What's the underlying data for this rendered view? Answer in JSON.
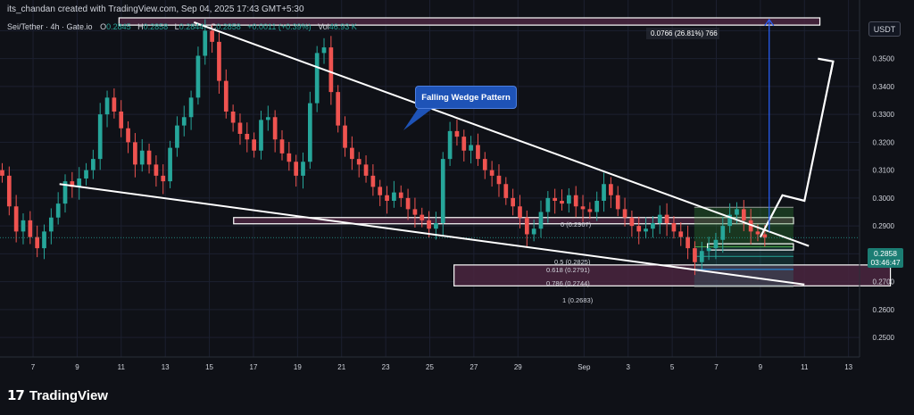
{
  "header": {
    "attribution": "its_chandan created with TradingView.com, Sep 04, 2025 17:43 GMT+5:30",
    "symbol": "Sei/Tether · 4h · Gate.io",
    "open_label": "O",
    "open": "0.2845",
    "high_label": "H",
    "high": "0.2858",
    "low_label": "L",
    "low": "0.2844",
    "close_label": "C",
    "close": "0.2858",
    "change": "+0.0011 (+0.39%)",
    "vol_label": "Vol",
    "vol": "46.93 K"
  },
  "toolbar": {
    "currency_label": "USDT"
  },
  "branding": {
    "logo_mark": "17",
    "name": "TradingView"
  },
  "annotations": {
    "pattern_label": "Falling Wedge Pattern",
    "measure_label": "0.0766 (26.81%) 766",
    "fib_0": "0 (0.2967)",
    "fib_05": "0.5 (0.2825)",
    "fib_0618": "0.618 (0.2791)",
    "fib_0786": "0.786 (0.2744)",
    "fib_1": "1 (0.2683)"
  },
  "price_badge": {
    "price": "0.2858",
    "countdown": "03:46:47"
  },
  "colors": {
    "up": "#26a69a",
    "down": "#ef5350",
    "zone_fill": "#4a2640",
    "zone_border": "#ffffff",
    "measure_line": "#2962ff",
    "trendline": "#ffffff",
    "background": "#0f1117"
  },
  "chart_data": {
    "type": "candlestick",
    "title": "Sei/Tether · 4h · Gate.io",
    "x_ticks": [
      "7",
      "9",
      "11",
      "13",
      "15",
      "17",
      "19",
      "21",
      "23",
      "25",
      "27",
      "29",
      "Sep",
      "3",
      "5",
      "7",
      "9",
      "11",
      "13"
    ],
    "y_ticks": [
      "0.3600",
      "0.3500",
      "0.3400",
      "0.3300",
      "0.3200",
      "0.3100",
      "0.3000",
      "0.2900",
      "0.2800",
      "0.2700",
      "0.2600",
      "0.2500"
    ],
    "ylim": [
      0.243,
      0.371
    ],
    "x_range_days": [
      5.5,
      44.5
    ],
    "grid": true,
    "last_price": 0.2858,
    "closes": [
      0.308,
      0.297,
      0.288,
      0.292,
      0.286,
      0.282,
      0.288,
      0.293,
      0.298,
      0.306,
      0.304,
      0.307,
      0.31,
      0.314,
      0.33,
      0.336,
      0.331,
      0.325,
      0.32,
      0.312,
      0.317,
      0.312,
      0.308,
      0.306,
      0.318,
      0.326,
      0.329,
      0.336,
      0.351,
      0.36,
      0.356,
      0.342,
      0.331,
      0.327,
      0.323,
      0.321,
      0.317,
      0.328,
      0.329,
      0.321,
      0.316,
      0.313,
      0.308,
      0.313,
      0.334,
      0.352,
      0.354,
      0.338,
      0.326,
      0.318,
      0.314,
      0.312,
      0.308,
      0.304,
      0.301,
      0.299,
      0.302,
      0.3,
      0.296,
      0.294,
      0.292,
      0.289,
      0.291,
      0.314,
      0.324,
      0.322,
      0.317,
      0.319,
      0.314,
      0.31,
      0.308,
      0.305,
      0.3,
      0.297,
      0.293,
      0.287,
      0.289,
      0.295,
      0.3,
      0.299,
      0.298,
      0.301,
      0.297,
      0.296,
      0.295,
      0.299,
      0.305,
      0.301,
      0.296,
      0.293,
      0.29,
      0.288,
      0.289,
      0.291,
      0.294,
      0.291,
      0.288,
      0.286,
      0.282,
      0.277,
      0.281,
      0.282,
      0.285,
      0.29,
      0.294,
      0.296,
      0.292,
      0.288,
      0.287,
      0.2858
    ],
    "trendlines": [
      {
        "from": [
          14.3,
          0.363
        ],
        "to": [
          42.2,
          0.2828
        ]
      },
      {
        "from": [
          8.2,
          0.305
        ],
        "to": [
          42.0,
          0.269
        ]
      }
    ],
    "zones": [
      {
        "x": [
          10.9,
          42.7
        ],
        "y": [
          0.362,
          0.3646
        ]
      },
      {
        "x": [
          16.1,
          41.5
        ],
        "y": [
          0.292,
          0.293
        ]
      },
      {
        "x": [
          26.1,
          45.9
        ],
        "y": [
          0.2685,
          0.276
        ]
      }
    ],
    "fib_range": {
      "x": [
        37.0,
        41.5
      ],
      "top": 0.2967,
      "bottom": 0.2683,
      "levels": [
        0.2967,
        0.2825,
        0.2791,
        0.2744,
        0.2683
      ]
    },
    "measure": {
      "x": 40.4,
      "from": 0.288,
      "to": 0.364
    },
    "projection": [
      [
        40.0,
        0.286
      ],
      [
        41.0,
        0.301
      ],
      [
        42.0,
        0.299
      ],
      [
        43.3,
        0.349
      ]
    ]
  }
}
